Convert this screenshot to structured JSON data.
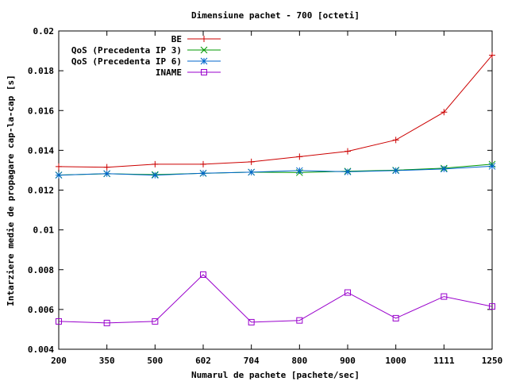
{
  "chart_data": {
    "type": "line",
    "title": "Dimensiune pachet - 700 [octeti]",
    "xlabel": "Numarul de pachete [pachete/sec]",
    "ylabel": "Intarziere medie de propagare cap-la-cap [s]",
    "categories": [
      "200",
      "350",
      "500",
      "602",
      "704",
      "800",
      "900",
      "1000",
      "1111",
      "1250"
    ],
    "ylim": [
      0.004,
      0.02
    ],
    "yticks": [
      0.004,
      0.006,
      0.008,
      0.01,
      0.012,
      0.014,
      0.016,
      0.018,
      0.02
    ],
    "ytick_labels": [
      "0.004",
      "0.006",
      "0.008",
      "0.01",
      "0.012",
      "0.014",
      "0.016",
      "0.018",
      "0.02"
    ],
    "grid": false,
    "legend_position": "top-left",
    "series": [
      {
        "name": "BE",
        "color": "#cc0000",
        "marker": "plus",
        "values": [
          0.01318,
          0.01315,
          0.0133,
          0.0133,
          0.01342,
          0.01368,
          0.01395,
          0.01452,
          0.01592,
          0.01878
        ]
      },
      {
        "name": "QoS (Precedenta IP 3)",
        "color": "#009900",
        "marker": "cross",
        "values": [
          0.01276,
          0.01282,
          0.01278,
          0.01284,
          0.0129,
          0.01288,
          0.01295,
          0.013,
          0.0131,
          0.0133
        ]
      },
      {
        "name": "QoS (Precedenta IP 6)",
        "color": "#0066cc",
        "marker": "star",
        "values": [
          0.01275,
          0.01283,
          0.01275,
          0.01285,
          0.0129,
          0.01298,
          0.01292,
          0.01298,
          0.01306,
          0.0132
        ]
      },
      {
        "name": "INAME",
        "color": "#9900cc",
        "marker": "square",
        "values": [
          0.0054,
          0.00532,
          0.0054,
          0.00775,
          0.00536,
          0.00545,
          0.00685,
          0.00556,
          0.00665,
          0.00615
        ]
      }
    ]
  }
}
